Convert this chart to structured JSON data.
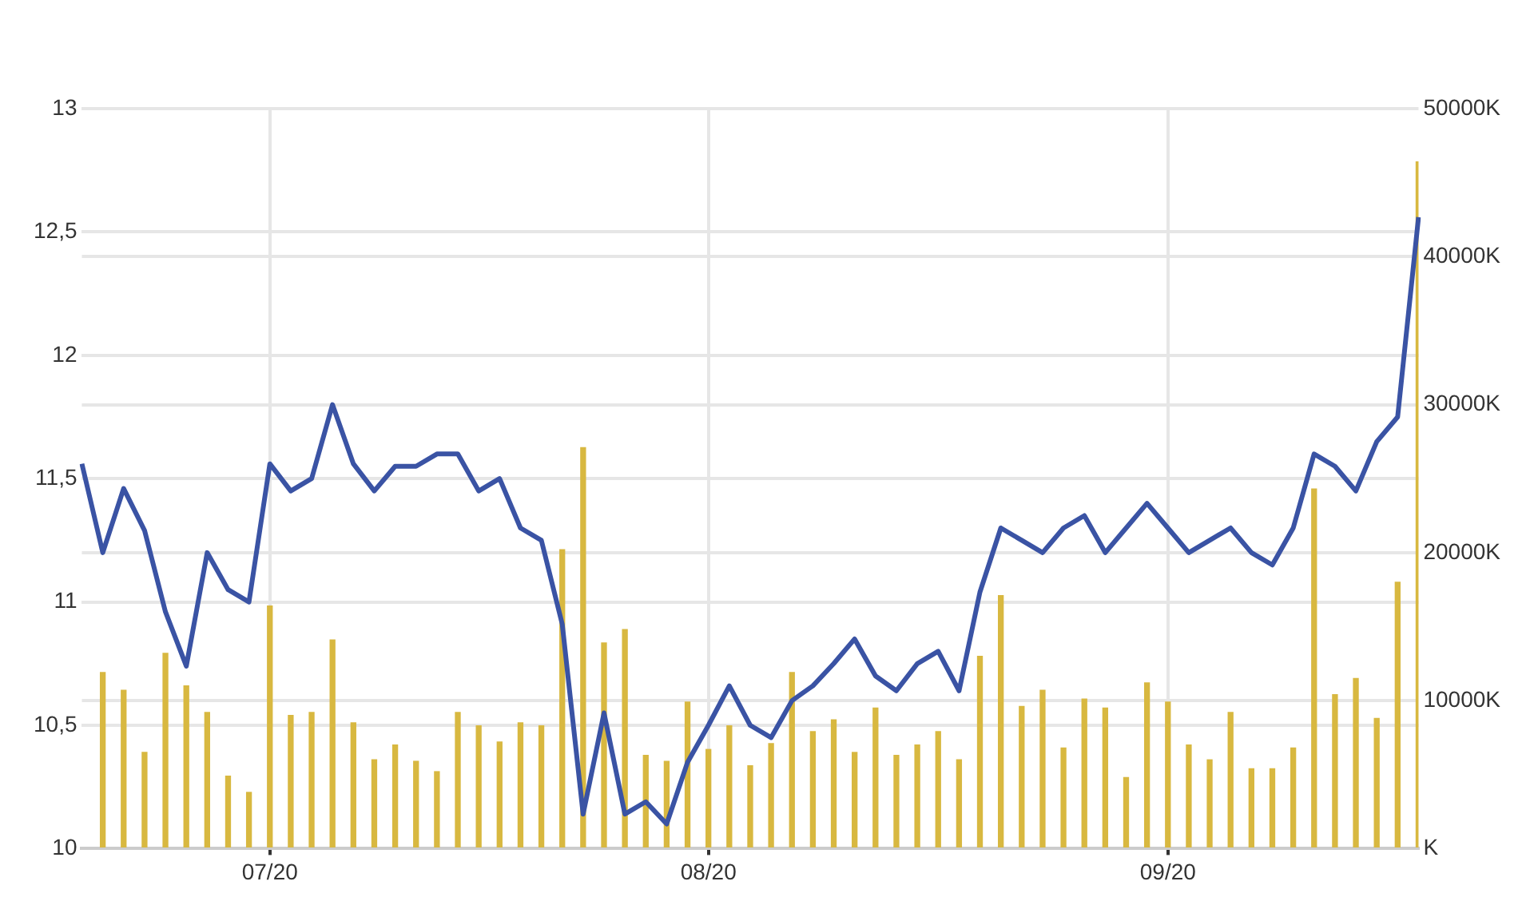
{
  "chart_data": {
    "type": "line",
    "categories": [
      null,
      null,
      null,
      null,
      null,
      null,
      null,
      null,
      null,
      "07/20",
      null,
      null,
      null,
      null,
      null,
      null,
      null,
      null,
      null,
      null,
      null,
      null,
      null,
      null,
      null,
      null,
      null,
      null,
      null,
      null,
      "08/20",
      null,
      null,
      null,
      null,
      null,
      null,
      null,
      null,
      null,
      null,
      null,
      null,
      null,
      null,
      null,
      null,
      null,
      null,
      null,
      null,
      null,
      "09/20",
      null,
      null,
      null,
      null,
      null,
      null,
      null,
      null,
      null,
      null,
      null,
      null
    ],
    "series": [
      {
        "type": "bar",
        "axis": "y2",
        "color": "#d8b840",
        "values": [
          null,
          11900,
          10700,
          6500,
          13200,
          11000,
          9200,
          4900,
          3800,
          16400,
          9000,
          9200,
          14100,
          8500,
          6000,
          7000,
          5900,
          5200,
          9200,
          8300,
          7200,
          8500,
          8300,
          20200,
          27100,
          13900,
          14800,
          6300,
          5900,
          9900,
          6700,
          8300,
          5600,
          7100,
          11900,
          7900,
          8700,
          6500,
          9500,
          6300,
          7000,
          7900,
          6000,
          13000,
          17100,
          9600,
          10700,
          6800,
          10100,
          9500,
          4800,
          11200,
          9900,
          7000,
          6000,
          9200,
          5400,
          5400,
          6800,
          24300,
          10400,
          11500,
          8800,
          18000,
          46400
        ]
      },
      {
        "color": "#3a53a4",
        "values": [
          11.56,
          11.2,
          11.46,
          11.29,
          10.96,
          10.74,
          11.2,
          11.05,
          11.0,
          11.56,
          11.45,
          11.5,
          11.8,
          11.56,
          11.45,
          11.55,
          11.55,
          11.6,
          11.6,
          11.45,
          11.5,
          11.3,
          11.25,
          10.91,
          10.14,
          10.55,
          10.14,
          10.19,
          10.1,
          10.35,
          10.5,
          10.66,
          10.5,
          10.45,
          10.6,
          10.66,
          10.75,
          10.85,
          10.7,
          10.64,
          10.75,
          10.8,
          10.64,
          11.04,
          11.3,
          11.25,
          11.2,
          11.3,
          11.35,
          11.2,
          11.3,
          11.4,
          11.3,
          11.2,
          11.25,
          11.3,
          11.2,
          11.15,
          11.3,
          11.6,
          11.55,
          11.45,
          11.65,
          11.75,
          12.56
        ]
      }
    ],
    "ylim": [
      10,
      13
    ],
    "yticks": [
      10,
      {
        "value": 10.5,
        "label": "10,5"
      },
      11,
      {
        "value": 11.5,
        "label": "11,5"
      },
      12,
      {
        "value": 12.5,
        "label": "12,5"
      },
      13
    ],
    "y2lim": [
      0,
      50000
    ],
    "y2ticks": [
      {
        "value": 0,
        "label": "K"
      },
      {
        "value": 10000,
        "label": "10000K"
      },
      {
        "value": 20000,
        "label": "20000K"
      },
      {
        "value": 30000,
        "label": "30000K"
      },
      {
        "value": 40000,
        "label": "40000K"
      },
      {
        "value": 50000,
        "label": "50000K"
      }
    ],
    "grid": true,
    "legend": false,
    "marker": "none",
    "line_style": "solid"
  }
}
